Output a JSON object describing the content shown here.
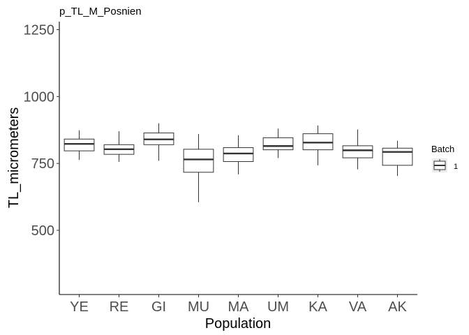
{
  "chart_data": {
    "type": "boxplot",
    "title": "p_TL_M_Posnien",
    "xlabel": "Population",
    "ylabel": "TL_micrometers",
    "ylim": [
      260,
      1280
    ],
    "yticks": [
      500,
      750,
      1000,
      1250
    ],
    "grid": false,
    "legend": {
      "title": "Batch",
      "entries": [
        "1"
      ],
      "placement": "right"
    },
    "categories": [
      "YE",
      "RE",
      "GI",
      "MU",
      "MA",
      "UM",
      "KA",
      "VA",
      "AK"
    ],
    "series": [
      {
        "name": "1",
        "boxes": [
          {
            "category": "YE",
            "min": 763,
            "q1": 797,
            "median": 823,
            "q3": 841,
            "max": 874
          },
          {
            "category": "RE",
            "min": 756,
            "q1": 784,
            "median": 803,
            "q3": 820,
            "max": 870
          },
          {
            "category": "GI",
            "min": 760,
            "q1": 820,
            "median": 840,
            "q3": 864,
            "max": 900
          },
          {
            "category": "MU",
            "min": 605,
            "q1": 717,
            "median": 765,
            "q3": 803,
            "max": 860
          },
          {
            "category": "MA",
            "min": 709,
            "q1": 757,
            "median": 787,
            "q3": 809,
            "max": 855
          },
          {
            "category": "UM",
            "min": 770,
            "q1": 801,
            "median": 815,
            "q3": 846,
            "max": 880
          },
          {
            "category": "KA",
            "min": 743,
            "q1": 801,
            "median": 828,
            "q3": 861,
            "max": 892
          },
          {
            "category": "VA",
            "min": 728,
            "q1": 771,
            "median": 799,
            "q3": 816,
            "max": 877
          },
          {
            "category": "AK",
            "min": 703,
            "q1": 743,
            "median": 793,
            "q3": 807,
            "max": 835
          }
        ]
      }
    ]
  }
}
